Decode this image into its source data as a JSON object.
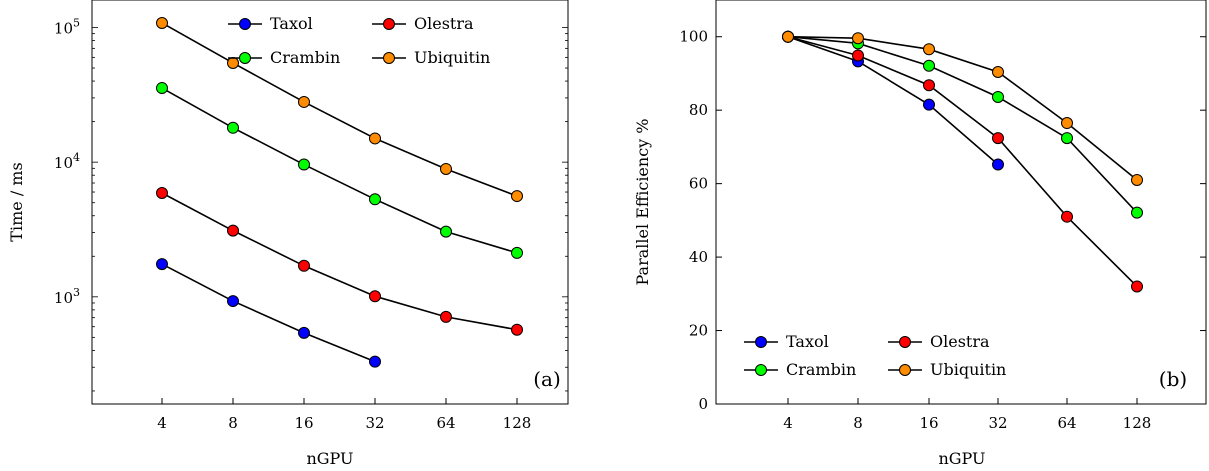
{
  "chart_data": [
    {
      "type": "line",
      "panel_label": "(a)",
      "xlabel": "nGPU",
      "ylabel": "Time / ms",
      "yscale": "log",
      "x_categories": [
        "4",
        "8",
        "16",
        "32",
        "64",
        "128"
      ],
      "y_ticks": [
        {
          "value": 1000,
          "mantissa": "10",
          "exp": "3"
        },
        {
          "value": 10000,
          "mantissa": "10",
          "exp": "4"
        },
        {
          "value": 100000,
          "mantissa": "10",
          "exp": "5"
        }
      ],
      "ylim": [
        160,
        160000
      ],
      "legend_position": "top-right",
      "series": [
        {
          "name": "Taxol",
          "color": "#0000ff",
          "values": [
            1750,
            930,
            540,
            330,
            null,
            null
          ]
        },
        {
          "name": "Olestra",
          "color": "#ff0000",
          "values": [
            5900,
            3100,
            1700,
            1010,
            710,
            570
          ]
        },
        {
          "name": "Crambin",
          "color": "#00ff00",
          "values": [
            35500,
            18000,
            9600,
            5300,
            3050,
            2120
          ]
        },
        {
          "name": "Ubiquitin",
          "color": "#ff8c00",
          "values": [
            108000,
            54500,
            28000,
            15000,
            8900,
            5600
          ]
        }
      ]
    },
    {
      "type": "line",
      "panel_label": "(b)",
      "xlabel": "nGPU",
      "ylabel": "Parallel Efficiency %",
      "x_categories": [
        "4",
        "8",
        "16",
        "32",
        "64",
        "128"
      ],
      "y_ticks": [
        "0",
        "20",
        "40",
        "60",
        "80",
        "100"
      ],
      "ylim": [
        0,
        110
      ],
      "legend_position": "bottom-left",
      "series": [
        {
          "name": "Taxol",
          "color": "#0000ff",
          "values": [
            100,
            93.3,
            81.5,
            65.2,
            null,
            null
          ]
        },
        {
          "name": "Olestra",
          "color": "#ff0000",
          "values": [
            100,
            94.9,
            86.8,
            72.4,
            51.0,
            32.0
          ]
        },
        {
          "name": "Crambin",
          "color": "#00ff00",
          "values": [
            100,
            98.2,
            92.1,
            83.6,
            72.4,
            52.1
          ]
        },
        {
          "name": "Ubiquitin",
          "color": "#ff8c00",
          "values": [
            100,
            99.6,
            96.6,
            90.4,
            76.5,
            61.0
          ]
        }
      ]
    }
  ]
}
